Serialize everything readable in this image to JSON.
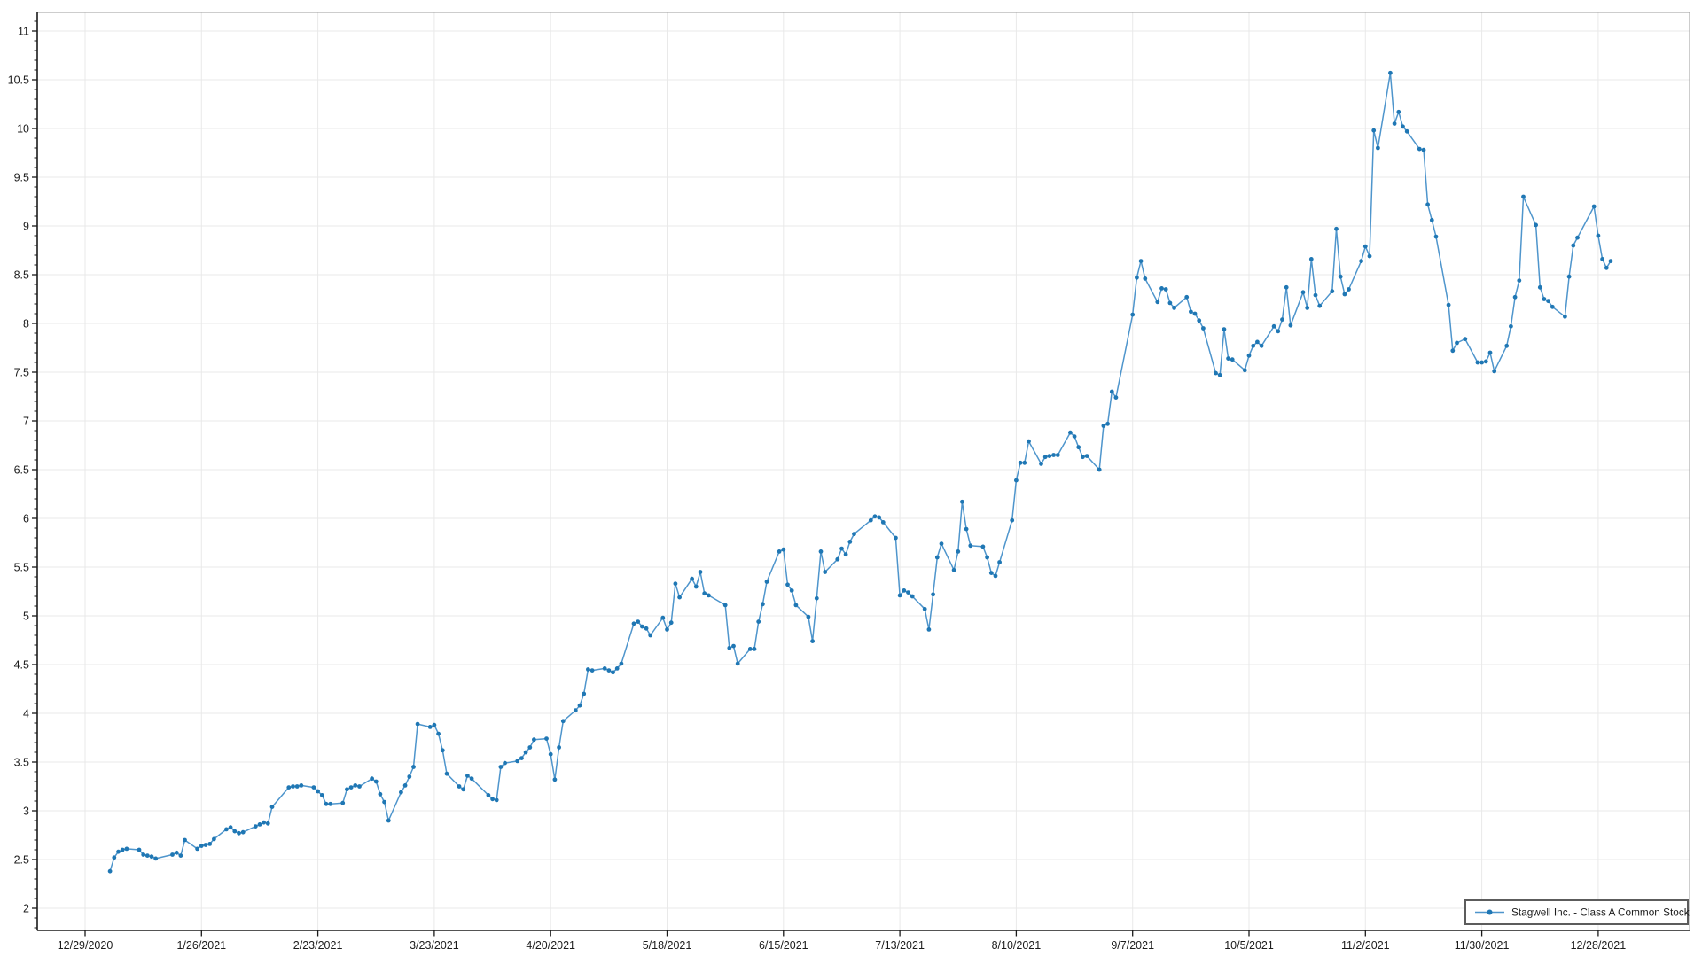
{
  "chart_data": {
    "type": "line",
    "title": "",
    "legend": {
      "label": "Stagwell Inc. - Class A Common Stock",
      "position": "bottom-right"
    },
    "x_axis": {
      "start_label": "12/29/2020",
      "tick_interval_days": 28,
      "tick_labels": [
        "12/29/2020",
        "1/26/2021",
        "2/23/2021",
        "3/23/2021",
        "4/20/2021",
        "5/18/2021",
        "6/15/2021",
        "7/13/2021",
        "8/10/2021",
        "9/7/2021",
        "10/5/2021",
        "11/2/2021",
        "11/30/2021",
        "12/28/2021"
      ]
    },
    "y_axis": {
      "min": 2,
      "max": 11,
      "major_step": 0.5,
      "minor_step": 0.1,
      "tick_labels": [
        "2",
        "2.5",
        "3",
        "3.5",
        "4",
        "4.5",
        "5",
        "5.5",
        "6",
        "6.5",
        "7",
        "7.5",
        "8",
        "8.5",
        "9",
        "9.5",
        "10",
        "10.5",
        "11"
      ]
    },
    "series": [
      {
        "name": "Stagwell Inc. - Class A Common Stock",
        "year": 2021,
        "points": [
          [
            "1/4",
            2.38
          ],
          [
            "1/5",
            2.52
          ],
          [
            "1/6",
            2.58
          ],
          [
            "1/7",
            2.6
          ],
          [
            "1/8",
            2.61
          ],
          [
            "1/11",
            2.6
          ],
          [
            "1/12",
            2.55
          ],
          [
            "1/13",
            2.54
          ],
          [
            "1/14",
            2.53
          ],
          [
            "1/15",
            2.51
          ],
          [
            "1/19",
            2.55
          ],
          [
            "1/20",
            2.57
          ],
          [
            "1/21",
            2.54
          ],
          [
            "1/22",
            2.7
          ],
          [
            "1/25",
            2.61
          ],
          [
            "1/26",
            2.64
          ],
          [
            "1/27",
            2.65
          ],
          [
            "1/28",
            2.66
          ],
          [
            "1/29",
            2.71
          ],
          [
            "2/1",
            2.81
          ],
          [
            "2/2",
            2.83
          ],
          [
            "2/3",
            2.79
          ],
          [
            "2/4",
            2.77
          ],
          [
            "2/5",
            2.78
          ],
          [
            "2/8",
            2.84
          ],
          [
            "2/9",
            2.86
          ],
          [
            "2/10",
            2.88
          ],
          [
            "2/11",
            2.87
          ],
          [
            "2/12",
            3.04
          ],
          [
            "2/16",
            3.24
          ],
          [
            "2/17",
            3.25
          ],
          [
            "2/18",
            3.25
          ],
          [
            "2/19",
            3.26
          ],
          [
            "2/22",
            3.24
          ],
          [
            "2/23",
            3.2
          ],
          [
            "2/24",
            3.16
          ],
          [
            "2/25",
            3.07
          ],
          [
            "2/26",
            3.07
          ],
          [
            "3/1",
            3.08
          ],
          [
            "3/2",
            3.22
          ],
          [
            "3/3",
            3.24
          ],
          [
            "3/4",
            3.26
          ],
          [
            "3/5",
            3.25
          ],
          [
            "3/8",
            3.33
          ],
          [
            "3/9",
            3.3
          ],
          [
            "3/10",
            3.17
          ],
          [
            "3/11",
            3.09
          ],
          [
            "3/12",
            2.9
          ],
          [
            "3/15",
            3.19
          ],
          [
            "3/16",
            3.26
          ],
          [
            "3/17",
            3.35
          ],
          [
            "3/18",
            3.45
          ],
          [
            "3/19",
            3.89
          ],
          [
            "3/22",
            3.86
          ],
          [
            "3/23",
            3.88
          ],
          [
            "3/24",
            3.79
          ],
          [
            "3/25",
            3.62
          ],
          [
            "3/26",
            3.38
          ],
          [
            "3/29",
            3.25
          ],
          [
            "3/30",
            3.22
          ],
          [
            "3/31",
            3.36
          ],
          [
            "4/1",
            3.33
          ],
          [
            "4/5",
            3.16
          ],
          [
            "4/6",
            3.12
          ],
          [
            "4/7",
            3.11
          ],
          [
            "4/8",
            3.45
          ],
          [
            "4/9",
            3.49
          ],
          [
            "4/12",
            3.51
          ],
          [
            "4/13",
            3.54
          ],
          [
            "4/14",
            3.6
          ],
          [
            "4/15",
            3.65
          ],
          [
            "4/16",
            3.73
          ],
          [
            "4/19",
            3.74
          ],
          [
            "4/20",
            3.58
          ],
          [
            "4/21",
            3.32
          ],
          [
            "4/22",
            3.65
          ],
          [
            "4/23",
            3.92
          ],
          [
            "4/26",
            4.03
          ],
          [
            "4/27",
            4.08
          ],
          [
            "4/28",
            4.2
          ],
          [
            "4/29",
            4.45
          ],
          [
            "4/30",
            4.44
          ],
          [
            "5/3",
            4.46
          ],
          [
            "5/4",
            4.44
          ],
          [
            "5/5",
            4.42
          ],
          [
            "5/6",
            4.46
          ],
          [
            "5/7",
            4.51
          ],
          [
            "5/10",
            4.92
          ],
          [
            "5/11",
            4.94
          ],
          [
            "5/12",
            4.89
          ],
          [
            "5/13",
            4.87
          ],
          [
            "5/14",
            4.8
          ],
          [
            "5/17",
            4.98
          ],
          [
            "5/18",
            4.86
          ],
          [
            "5/19",
            4.93
          ],
          [
            "5/20",
            5.33
          ],
          [
            "5/21",
            5.19
          ],
          [
            "5/24",
            5.38
          ],
          [
            "5/25",
            5.3
          ],
          [
            "5/26",
            5.45
          ],
          [
            "5/27",
            5.23
          ],
          [
            "5/28",
            5.21
          ],
          [
            "6/1",
            5.11
          ],
          [
            "6/2",
            4.67
          ],
          [
            "6/3",
            4.69
          ],
          [
            "6/4",
            4.51
          ],
          [
            "6/7",
            4.66
          ],
          [
            "6/8",
            4.66
          ],
          [
            "6/9",
            4.94
          ],
          [
            "6/10",
            5.12
          ],
          [
            "6/11",
            5.35
          ],
          [
            "6/14",
            5.66
          ],
          [
            "6/15",
            5.68
          ],
          [
            "6/16",
            5.32
          ],
          [
            "6/17",
            5.26
          ],
          [
            "6/18",
            5.11
          ],
          [
            "6/21",
            4.99
          ],
          [
            "6/22",
            4.74
          ],
          [
            "6/23",
            5.18
          ],
          [
            "6/24",
            5.66
          ],
          [
            "6/25",
            5.45
          ],
          [
            "6/28",
            5.58
          ],
          [
            "6/29",
            5.69
          ],
          [
            "6/30",
            5.63
          ],
          [
            "7/1",
            5.76
          ],
          [
            "7/2",
            5.84
          ],
          [
            "7/6",
            5.98
          ],
          [
            "7/7",
            6.02
          ],
          [
            "7/8",
            6.01
          ],
          [
            "7/9",
            5.96
          ],
          [
            "7/12",
            5.8
          ],
          [
            "7/13",
            5.21
          ],
          [
            "7/14",
            5.26
          ],
          [
            "7/15",
            5.24
          ],
          [
            "7/16",
            5.2
          ],
          [
            "7/19",
            5.07
          ],
          [
            "7/20",
            4.86
          ],
          [
            "7/21",
            5.22
          ],
          [
            "7/22",
            5.6
          ],
          [
            "7/23",
            5.74
          ],
          [
            "7/26",
            5.47
          ],
          [
            "7/27",
            5.66
          ],
          [
            "7/28",
            6.17
          ],
          [
            "7/29",
            5.89
          ],
          [
            "7/30",
            5.72
          ],
          [
            "8/2",
            5.71
          ],
          [
            "8/3",
            5.6
          ],
          [
            "8/4",
            5.44
          ],
          [
            "8/5",
            5.41
          ],
          [
            "8/6",
            5.55
          ],
          [
            "8/9",
            5.98
          ],
          [
            "8/10",
            6.39
          ],
          [
            "8/11",
            6.57
          ],
          [
            "8/12",
            6.57
          ],
          [
            "8/13",
            6.79
          ],
          [
            "8/16",
            6.56
          ],
          [
            "8/17",
            6.63
          ],
          [
            "8/18",
            6.64
          ],
          [
            "8/19",
            6.65
          ],
          [
            "8/20",
            6.65
          ],
          [
            "8/23",
            6.88
          ],
          [
            "8/24",
            6.84
          ],
          [
            "8/25",
            6.73
          ],
          [
            "8/26",
            6.63
          ],
          [
            "8/27",
            6.64
          ],
          [
            "8/30",
            6.5
          ],
          [
            "8/31",
            6.95
          ],
          [
            "9/1",
            6.97
          ],
          [
            "9/2",
            7.3
          ],
          [
            "9/3",
            7.24
          ],
          [
            "9/7",
            8.09
          ],
          [
            "9/8",
            8.47
          ],
          [
            "9/9",
            8.64
          ],
          [
            "9/10",
            8.46
          ],
          [
            "9/13",
            8.22
          ],
          [
            "9/14",
            8.36
          ],
          [
            "9/15",
            8.35
          ],
          [
            "9/16",
            8.21
          ],
          [
            "9/17",
            8.16
          ],
          [
            "9/20",
            8.27
          ],
          [
            "9/21",
            8.12
          ],
          [
            "9/22",
            8.1
          ],
          [
            "9/23",
            8.03
          ],
          [
            "9/24",
            7.95
          ],
          [
            "9/27",
            7.49
          ],
          [
            "9/28",
            7.47
          ],
          [
            "9/29",
            7.94
          ],
          [
            "9/30",
            7.64
          ],
          [
            "10/1",
            7.63
          ],
          [
            "10/4",
            7.52
          ],
          [
            "10/5",
            7.67
          ],
          [
            "10/6",
            7.77
          ],
          [
            "10/7",
            7.81
          ],
          [
            "10/8",
            7.77
          ],
          [
            "10/11",
            7.97
          ],
          [
            "10/12",
            7.92
          ],
          [
            "10/13",
            8.04
          ],
          [
            "10/14",
            8.37
          ],
          [
            "10/15",
            7.98
          ],
          [
            "10/18",
            8.32
          ],
          [
            "10/19",
            8.16
          ],
          [
            "10/20",
            8.66
          ],
          [
            "10/21",
            8.29
          ],
          [
            "10/22",
            8.18
          ],
          [
            "10/25",
            8.33
          ],
          [
            "10/26",
            8.97
          ],
          [
            "10/27",
            8.48
          ],
          [
            "10/28",
            8.3
          ],
          [
            "10/29",
            8.35
          ],
          [
            "11/1",
            8.64
          ],
          [
            "11/2",
            8.79
          ],
          [
            "11/3",
            8.69
          ],
          [
            "11/4",
            9.98
          ],
          [
            "11/5",
            9.8
          ],
          [
            "11/8",
            10.57
          ],
          [
            "11/9",
            10.05
          ],
          [
            "11/10",
            10.17
          ],
          [
            "11/11",
            10.02
          ],
          [
            "11/12",
            9.97
          ],
          [
            "11/15",
            9.79
          ],
          [
            "11/16",
            9.78
          ],
          [
            "11/17",
            9.22
          ],
          [
            "11/18",
            9.06
          ],
          [
            "11/19",
            8.89
          ],
          [
            "11/22",
            8.19
          ],
          [
            "11/23",
            7.72
          ],
          [
            "11/24",
            7.8
          ],
          [
            "11/26",
            7.84
          ],
          [
            "11/29",
            7.6
          ],
          [
            "11/30",
            7.6
          ],
          [
            "12/1",
            7.61
          ],
          [
            "12/2",
            7.7
          ],
          [
            "12/3",
            7.51
          ],
          [
            "12/6",
            7.77
          ],
          [
            "12/7",
            7.97
          ],
          [
            "12/8",
            8.27
          ],
          [
            "12/9",
            8.44
          ],
          [
            "12/10",
            9.3
          ],
          [
            "12/13",
            9.01
          ],
          [
            "12/14",
            8.37
          ],
          [
            "12/15",
            8.25
          ],
          [
            "12/16",
            8.23
          ],
          [
            "12/17",
            8.17
          ],
          [
            "12/20",
            8.07
          ],
          [
            "12/21",
            8.48
          ],
          [
            "12/22",
            8.8
          ],
          [
            "12/23",
            8.88
          ],
          [
            "12/27",
            9.2
          ],
          [
            "12/28",
            8.9
          ],
          [
            "12/29",
            8.66
          ],
          [
            "12/30",
            8.57
          ],
          [
            "12/31",
            8.64
          ]
        ]
      }
    ],
    "grid": true,
    "colors": {
      "line": "#4e95cc",
      "marker": "#1f77b4",
      "grid": "#e9e9e9",
      "axis": "#1a1a1a",
      "tick_text": "#1c1c1c",
      "plot_border": "#9b9b9b",
      "legend_border": "#5c5c5c",
      "background": "#ffffff"
    }
  }
}
